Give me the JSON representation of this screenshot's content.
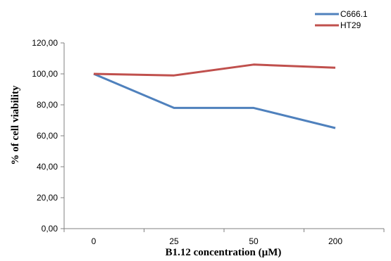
{
  "chart_data": {
    "type": "line",
    "categories": [
      "0",
      "25",
      "50",
      "200"
    ],
    "series": [
      {
        "name": "C666.1",
        "values": [
          100,
          78,
          78,
          65
        ],
        "color": "#4f81bd"
      },
      {
        "name": "HT29",
        "values": [
          100,
          99,
          106,
          104
        ],
        "color": "#c0504d"
      }
    ],
    "xlabel": "B1.12 concentration (µM)",
    "ylabel": "% of  cell viability",
    "ylim": [
      0,
      120
    ],
    "y_ticks": [
      "0,00",
      "20,00",
      "40,00",
      "60,00",
      "80,00",
      "100,00",
      "120,00"
    ],
    "grid": false,
    "legend_position": "top-right"
  }
}
